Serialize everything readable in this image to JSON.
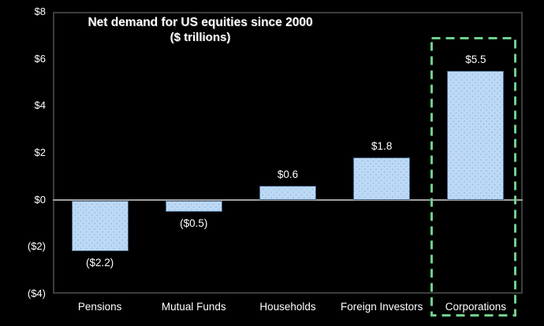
{
  "chart_data": {
    "type": "bar",
    "title": "Net demand for US equities since 2000",
    "subtitle": "($ trillions)",
    "categories": [
      "Pensions",
      "Mutual Funds",
      "Households",
      "Foreign Investors",
      "Corporations"
    ],
    "values": [
      -2.2,
      -0.5,
      0.6,
      1.8,
      5.5
    ],
    "value_labels": [
      "($2.2)",
      "($0.5)",
      "$0.6",
      "$1.8",
      "$5.5"
    ],
    "xlabel": "",
    "ylabel": "",
    "ylim": [
      -4,
      8
    ],
    "y_ticks": [
      {
        "value": 8,
        "label": "$8"
      },
      {
        "value": 6,
        "label": "$6"
      },
      {
        "value": 4,
        "label": "$4"
      },
      {
        "value": 2,
        "label": "$2"
      },
      {
        "value": 0,
        "label": "$0"
      },
      {
        "value": -2,
        "label": "($2)"
      },
      {
        "value": -4,
        "label": "($4)"
      }
    ],
    "grid": false,
    "legend": "none",
    "highlight": {
      "category": "Corporations",
      "style": "green-dashed-box"
    },
    "colors": {
      "background": "#000000",
      "text": "#ffffff",
      "bar_fill": "#bdd9f5",
      "bar_dot": "#9cc3e8",
      "bar_border": "#4a6785",
      "axis_border": "#3d3d3d",
      "zero_line": "#9e9e9e",
      "highlight_green": "#6fcf8e"
    }
  }
}
